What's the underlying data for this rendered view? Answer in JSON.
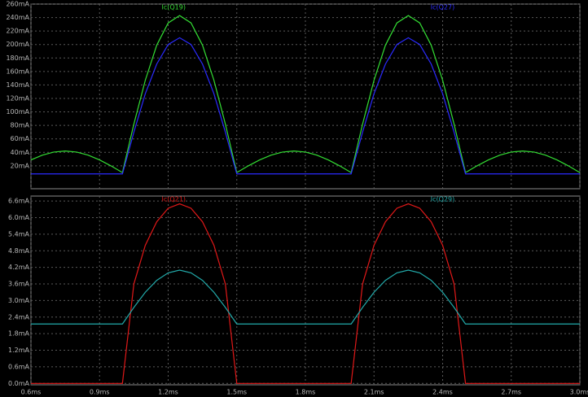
{
  "chart_data": [
    {
      "type": "line",
      "x": [
        0.6,
        0.65,
        0.7,
        0.75,
        0.8,
        0.85,
        0.9,
        0.95,
        1.0,
        1.05,
        1.1,
        1.15,
        1.2,
        1.25,
        1.3,
        1.35,
        1.4,
        1.45,
        1.5,
        1.55,
        1.6,
        1.65,
        1.7,
        1.75,
        1.8,
        1.85,
        1.9,
        1.95,
        2.0,
        2.05,
        2.1,
        2.15,
        2.2,
        2.25,
        2.3,
        2.35,
        2.4,
        2.45,
        2.5,
        2.55,
        2.6,
        2.65,
        2.7,
        2.75,
        2.8,
        2.85,
        2.9,
        2.95,
        3.0
      ],
      "xlim": [
        0.6,
        3.0
      ],
      "ylim": [
        -14,
        260
      ],
      "yticks": [
        {
          "value": 20,
          "label": "20mA"
        },
        {
          "value": 40,
          "label": "40mA"
        },
        {
          "value": 60,
          "label": "60mA"
        },
        {
          "value": 80,
          "label": "80mA"
        },
        {
          "value": 100,
          "label": "100mA"
        },
        {
          "value": 120,
          "label": "120mA"
        },
        {
          "value": 140,
          "label": "140mA"
        },
        {
          "value": 160,
          "label": "160mA"
        },
        {
          "value": 180,
          "label": "180mA"
        },
        {
          "value": 200,
          "label": "200mA"
        },
        {
          "value": 220,
          "label": "220mA"
        },
        {
          "value": 240,
          "label": "240mA"
        },
        {
          "value": 260,
          "label": "260mA"
        }
      ],
      "grid": true,
      "series": [
        {
          "name": "Ic(Q19)",
          "color": "#33dd33",
          "values": [
            28.8,
            35.9,
            40.4,
            42,
            40.4,
            35.9,
            28.8,
            19.9,
            10,
            82,
            147,
            199,
            232,
            243,
            232,
            199,
            147,
            82,
            10,
            19.9,
            28.8,
            35.9,
            40.4,
            42,
            40.4,
            35.9,
            28.8,
            19.9,
            10,
            82,
            147,
            199,
            232,
            243,
            232,
            199,
            147,
            82,
            10,
            19.9,
            28.8,
            35.9,
            40.4,
            42,
            40.4,
            35.9,
            28.8,
            19.9,
            10
          ]
        },
        {
          "name": "Ic(Q27)",
          "color": "#2a2aff",
          "values": [
            8,
            8,
            8,
            8,
            8,
            8,
            8,
            8,
            8,
            70,
            127,
            171,
            200,
            210,
            200,
            171,
            127,
            70,
            8,
            8,
            8,
            8,
            8,
            8,
            8,
            8,
            8,
            8,
            8,
            70,
            127,
            171,
            200,
            210,
            200,
            171,
            127,
            70,
            8,
            8,
            8,
            8,
            8,
            8,
            8,
            8,
            8,
            8,
            8
          ]
        }
      ]
    },
    {
      "type": "line",
      "x": [
        0.6,
        0.65,
        0.7,
        0.75,
        0.8,
        0.85,
        0.9,
        0.95,
        1.0,
        1.05,
        1.1,
        1.15,
        1.2,
        1.25,
        1.3,
        1.35,
        1.4,
        1.45,
        1.5,
        1.55,
        1.6,
        1.65,
        1.7,
        1.75,
        1.8,
        1.85,
        1.9,
        1.95,
        2.0,
        2.05,
        2.1,
        2.15,
        2.2,
        2.25,
        2.3,
        2.35,
        2.4,
        2.45,
        2.5,
        2.55,
        2.6,
        2.65,
        2.7,
        2.75,
        2.8,
        2.85,
        2.9,
        2.95,
        3.0
      ],
      "xlim": [
        0.6,
        3.0
      ],
      "xticks": [
        {
          "value": 0.6,
          "label": "0.6ms"
        },
        {
          "value": 0.9,
          "label": "0.9ms"
        },
        {
          "value": 1.2,
          "label": "1.2ms"
        },
        {
          "value": 1.5,
          "label": "1.5ms"
        },
        {
          "value": 1.8,
          "label": "1.8ms"
        },
        {
          "value": 2.1,
          "label": "2.1ms"
        },
        {
          "value": 2.4,
          "label": "2.4ms"
        },
        {
          "value": 2.7,
          "label": "2.7ms"
        },
        {
          "value": 3.0,
          "label": "3.0ms"
        }
      ],
      "ylim": [
        -0.05,
        6.78
      ],
      "yticks": [
        {
          "value": 0,
          "label": "0.0mA"
        },
        {
          "value": 0.6,
          "label": "0.6mA"
        },
        {
          "value": 1.2,
          "label": "1.2mA"
        },
        {
          "value": 1.8,
          "label": "1.8mA"
        },
        {
          "value": 2.4,
          "label": "2.4mA"
        },
        {
          "value": 3.0,
          "label": "3.0mA"
        },
        {
          "value": 3.6,
          "label": "3.6mA"
        },
        {
          "value": 4.2,
          "label": "4.2mA"
        },
        {
          "value": 4.8,
          "label": "4.8mA"
        },
        {
          "value": 5.4,
          "label": "5.4mA"
        },
        {
          "value": 6.0,
          "label": "6.0mA"
        },
        {
          "value": 6.6,
          "label": "6.6mA"
        }
      ],
      "grid": true,
      "series": [
        {
          "name": "Ic(Q21)",
          "color": "#e01818",
          "values": [
            0,
            0,
            0,
            0,
            0,
            0,
            0,
            0,
            0,
            3.6,
            5.0,
            5.85,
            6.34,
            6.5,
            6.34,
            5.85,
            5.0,
            3.6,
            0,
            0,
            0,
            0,
            0,
            0,
            0,
            0,
            0,
            0,
            0,
            3.6,
            5.0,
            5.85,
            6.34,
            6.5,
            6.34,
            5.85,
            5.0,
            3.6,
            0,
            0,
            0,
            0,
            0,
            0,
            0,
            0,
            0,
            0,
            0
          ]
        },
        {
          "name": "Ic(Q29)",
          "color": "#22aaaa",
          "values": [
            2.15,
            2.15,
            2.15,
            2.15,
            2.15,
            2.15,
            2.15,
            2.15,
            2.15,
            2.75,
            3.3,
            3.73,
            4.0,
            4.1,
            4.0,
            3.73,
            3.3,
            2.75,
            2.15,
            2.15,
            2.15,
            2.15,
            2.15,
            2.15,
            2.15,
            2.15,
            2.15,
            2.15,
            2.15,
            2.75,
            3.3,
            3.73,
            4.0,
            4.1,
            4.0,
            3.73,
            3.3,
            2.75,
            2.15,
            2.15,
            2.15,
            2.15,
            2.15,
            2.15,
            2.15,
            2.15,
            2.15,
            2.15,
            2.15
          ]
        }
      ]
    }
  ]
}
